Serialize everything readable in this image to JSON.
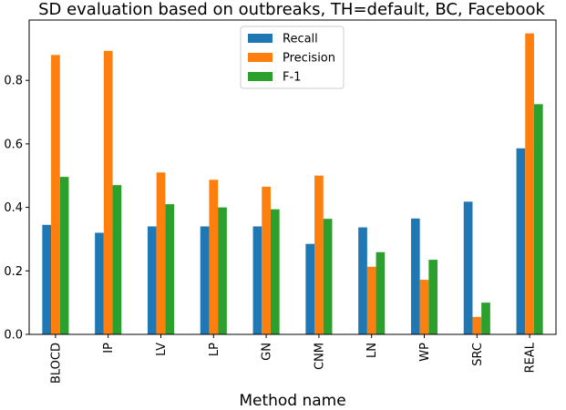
{
  "chart_data": {
    "type": "bar",
    "title": "SD evaluation based on outbreaks, TH=default, BC, Facebook",
    "xlabel": "Method name",
    "ylabel": "",
    "ylim": [
      0,
      0.99
    ],
    "yticks": [
      "0.0",
      "0.2",
      "0.4",
      "0.6",
      "0.8"
    ],
    "grid": false,
    "legend_position": "top-center",
    "categories": [
      "BLOCD",
      "IP",
      "LV",
      "LP",
      "GN",
      "CNM",
      "LN",
      "WP",
      "SRC",
      "REAL"
    ],
    "series": [
      {
        "name": "Recall",
        "color": "#1f77b4",
        "values": [
          0.345,
          0.32,
          0.34,
          0.34,
          0.34,
          0.285,
          0.337,
          0.365,
          0.418,
          0.586
        ]
      },
      {
        "name": "Precision",
        "color": "#ff7f0e",
        "values": [
          0.88,
          0.893,
          0.51,
          0.487,
          0.465,
          0.5,
          0.213,
          0.172,
          0.055,
          0.948
        ]
      },
      {
        "name": "F-1",
        "color": "#2ca02c",
        "values": [
          0.496,
          0.47,
          0.41,
          0.4,
          0.394,
          0.364,
          0.259,
          0.235,
          0.1,
          0.725
        ]
      }
    ]
  }
}
